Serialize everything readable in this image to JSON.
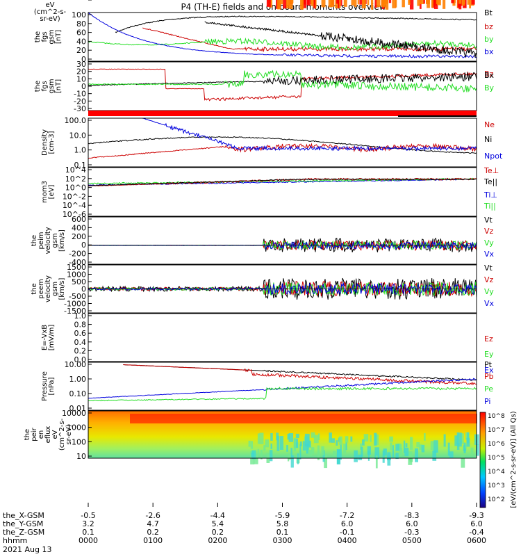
{
  "title": "P4 (TH-E) fields and on-board moments overview",
  "colors": {
    "black": "#000000",
    "red": "#cc0000",
    "green": "#22dd22",
    "blue": "#0000dd"
  },
  "chart_data": [
    {
      "type": "line",
      "ylabel": "the\nfgs\ngsm\n[nT]",
      "yticks": [
        "100",
        "80",
        "60",
        "40",
        "20",
        "0"
      ],
      "legend": [
        {
          "label": "Bt",
          "color": "black"
        },
        {
          "label": "bz",
          "color": "red"
        },
        {
          "label": "by",
          "color": "green"
        },
        {
          "label": "bx",
          "color": "blue"
        }
      ],
      "ylim": [
        0,
        100
      ]
    },
    {
      "type": "line",
      "ylabel": "the\nfgs\ngsm\n[nT]",
      "yticks": [
        "30",
        "20",
        "10",
        "0",
        "-10",
        "-20",
        "-30"
      ],
      "legend": [
        {
          "label": "Bz",
          "color": "red"
        },
        {
          "label": "Bx",
          "color": "black"
        },
        {
          "label": "By",
          "color": "green"
        }
      ],
      "ylim": [
        -30,
        30
      ]
    },
    {
      "type": "line",
      "ylabel": "Density\n[cm-3]",
      "yticks": [
        "100.0",
        "10.0",
        "1.0",
        "0.1"
      ],
      "scale": "log",
      "legend": [
        {
          "label": "Ne",
          "color": "red"
        },
        {
          "label": "Ni",
          "color": "black"
        },
        {
          "label": "Npot",
          "color": "blue"
        }
      ]
    },
    {
      "type": "line",
      "ylabel": "mom3\n[eV]",
      "yticks": [
        "10^4",
        "10^2",
        "10^0",
        "10^-2",
        "10^-4",
        "10^-6"
      ],
      "scale": "log",
      "legend": [
        {
          "label": "Te⊥",
          "color": "red"
        },
        {
          "label": "Te||",
          "color": "black"
        },
        {
          "label": "Ti⊥",
          "color": "blue"
        },
        {
          "label": "Ti||",
          "color": "green"
        }
      ]
    },
    {
      "type": "line",
      "ylabel": "the\npeim\nvelocity\ngsm\n[km/s]",
      "yticks": [
        "600",
        "400",
        "200",
        "0",
        "-200",
        "-400"
      ],
      "legend": [
        {
          "label": "Vt",
          "color": "black"
        },
        {
          "label": "Vz",
          "color": "red"
        },
        {
          "label": "Vy",
          "color": "green"
        },
        {
          "label": "Vx",
          "color": "blue"
        }
      ],
      "ylim": [
        -400,
        600
      ]
    },
    {
      "type": "line",
      "ylabel": "the\npeem\nvelocity\ngsm\n[km/s]",
      "yticks": [
        "1500",
        "1000",
        "500",
        "0",
        "-500",
        "-1000",
        "-1500"
      ],
      "legend": [
        {
          "label": "Vt",
          "color": "black"
        },
        {
          "label": "Vz",
          "color": "red"
        },
        {
          "label": "Vy",
          "color": "green"
        },
        {
          "label": "Vx",
          "color": "blue"
        }
      ],
      "ylim": [
        -1500,
        1500
      ]
    },
    {
      "type": "line",
      "ylabel": "E=-VxB\n[mV/m]",
      "yticks": [
        "1.0",
        "0.8",
        "0.6",
        "0.4",
        "0.2",
        "0.0"
      ],
      "legend": [
        {
          "label": "Ez",
          "color": "red"
        },
        {
          "label": "Ey",
          "color": "green"
        },
        {
          "label": "Ex",
          "color": "blue"
        }
      ],
      "ylim": [
        0,
        1
      ]
    },
    {
      "type": "line",
      "ylabel": "Pressure\n[nPa]",
      "yticks": [
        "10.00",
        "1.00",
        "0.10",
        "0.01"
      ],
      "scale": "log",
      "legend": [
        {
          "label": "Pt",
          "color": "black"
        },
        {
          "label": "Pb",
          "color": "red"
        },
        {
          "label": "Pe",
          "color": "green"
        },
        {
          "label": "Pi",
          "color": "blue"
        }
      ]
    },
    {
      "type": "heatmap",
      "ylabel": "the\npeir\nen\neflux\neV\n(cm^2-s-\nsr-eV)",
      "yticks": [
        "10000",
        "1000",
        "100",
        "10"
      ],
      "scale": "log"
    },
    {
      "type": "heatmap",
      "ylabel": "the\npeer\nen\neflux\neV\n(cm^2-s-\nsr-eV)",
      "yticks": [
        "10000",
        "1000",
        "100",
        "10"
      ],
      "scale": "log"
    }
  ],
  "colorbar": {
    "ticks": [
      "10^8",
      "10^7",
      "10^6",
      "10^5",
      "10^4",
      "10^3",
      "10^2"
    ],
    "label": "[eV/(cm^2-s-sr-eV)] (All Qs)"
  },
  "xaxis": {
    "rows": [
      {
        "label": "the_X-GSM",
        "values": [
          "-0.5",
          "-2.6",
          "-4.4",
          "-5.9",
          "-7.2",
          "-8.3",
          "-9.3"
        ]
      },
      {
        "label": "the_Y-GSM",
        "values": [
          "3.2",
          "4.7",
          "5.4",
          "5.8",
          "6.0",
          "6.0",
          "6.0"
        ]
      },
      {
        "label": "the_Z-GSM",
        "values": [
          "0.1",
          "0.2",
          "0.2",
          "0.1",
          "-0.1",
          "-0.3",
          "-0.4"
        ]
      },
      {
        "label": "hhmm",
        "values": [
          "0000",
          "0100",
          "0200",
          "0300",
          "0400",
          "0500",
          "0600"
        ]
      }
    ],
    "date": "2021 Aug 13"
  }
}
